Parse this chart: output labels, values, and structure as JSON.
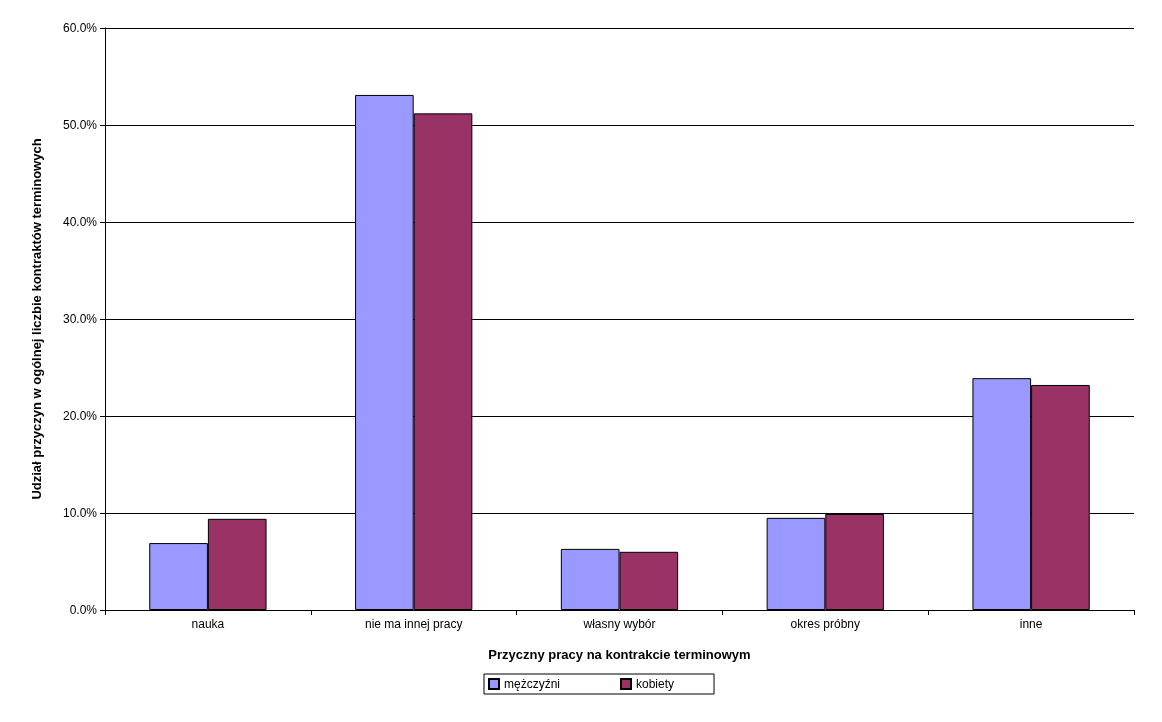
{
  "chart_data": {
    "type": "bar",
    "xlabel": "Przyczny pracy na kontrakcie terminowym",
    "ylabel": "Udział przyczyn w ogólnej liczbie kontraktów terminowych",
    "categories": [
      "nauka",
      "nie ma innej pracy",
      "własny wybór",
      "okres próbny",
      "inne"
    ],
    "series": [
      {
        "name": "mężczyźni",
        "color": "#9999ff",
        "values": [
          6.9,
          53.1,
          6.3,
          9.5,
          23.9
        ]
      },
      {
        "name": "kobiety",
        "color": "#993366",
        "values": [
          9.4,
          51.2,
          6.0,
          9.9,
          23.2
        ]
      }
    ],
    "ylim": [
      0,
      60
    ],
    "yticks": [
      {
        "value": 0,
        "label": "0.0%"
      },
      {
        "value": 10,
        "label": "10.0%"
      },
      {
        "value": 20,
        "label": "20.0%"
      },
      {
        "value": 30,
        "label": "30.0%"
      },
      {
        "value": 40,
        "label": "40.0%"
      },
      {
        "value": 50,
        "label": "50.0%"
      },
      {
        "value": 60,
        "label": "60.0%"
      }
    ],
    "grid": "y",
    "legend": "bottom"
  }
}
